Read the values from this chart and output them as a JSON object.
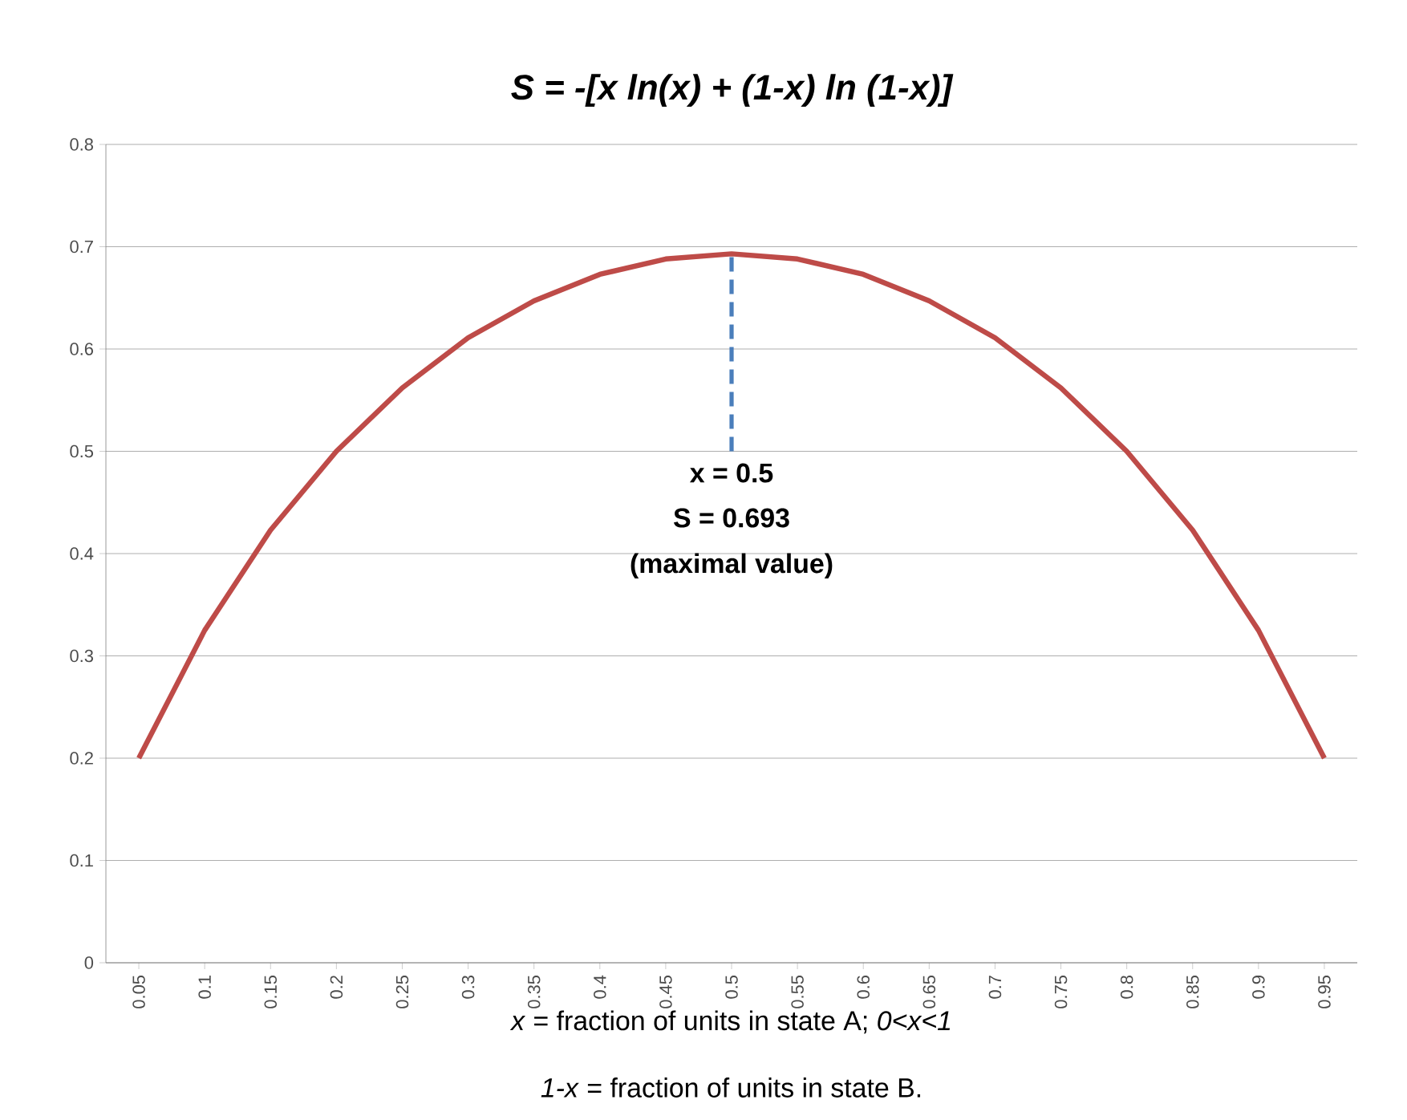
{
  "chart_data": {
    "type": "line",
    "title": "S = -[x ln(x) + (1-x) ln (1-x)]",
    "xlabel": "*x* = fraction of units in state A; *0<x<1*",
    "annotations": [
      "x = 0.5",
      "S = 0.693",
      "(maximal value)",
      "*1-x* = fraction of units in state B."
    ],
    "xlim": [
      0.025,
      0.975
    ],
    "xticks": [
      0.05,
      0.1,
      0.15,
      0.2,
      0.25,
      0.3,
      0.35,
      0.4,
      0.45,
      0.5,
      0.55,
      0.6,
      0.65,
      0.7,
      0.75,
      0.8,
      0.85,
      0.9,
      0.95
    ],
    "ylim": [
      0,
      0.8
    ],
    "yticks": [
      0,
      0.1,
      0.2,
      0.3,
      0.4,
      0.5,
      0.6,
      0.7,
      0.8
    ],
    "grid": "y",
    "series": [
      {
        "color": "#be4b48",
        "x": [
          0.05,
          0.1,
          0.15,
          0.2,
          0.25,
          0.3,
          0.35,
          0.4,
          0.45,
          0.5,
          0.55,
          0.6,
          0.65,
          0.7,
          0.75,
          0.8,
          0.85,
          0.9,
          0.95
        ],
        "values": [
          0.2,
          0.325,
          0.423,
          0.5,
          0.562,
          0.611,
          0.647,
          0.673,
          0.688,
          0.693,
          0.688,
          0.673,
          0.647,
          0.611,
          0.562,
          0.5,
          0.423,
          0.325,
          0.2
        ]
      },
      {
        "color": "#4a7ebb",
        "line_style": "dashed",
        "x": [
          0.5,
          0.5
        ],
        "values": [
          0.5,
          0.693
        ]
      }
    ]
  }
}
